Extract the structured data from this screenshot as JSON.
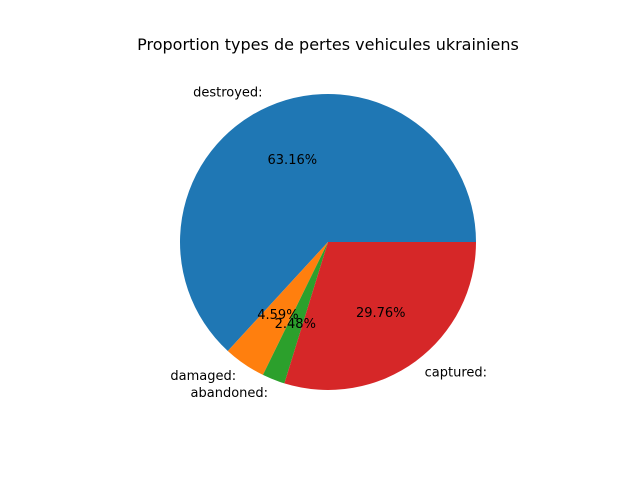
{
  "chart_data": {
    "type": "pie",
    "title": "Proportion types de pertes vehicules ukrainiens",
    "slices": [
      {
        "label": "destroyed:",
        "value": 63.16,
        "pct_label": "63.16%",
        "color": "#1f77b4"
      },
      {
        "label": "damaged:",
        "value": 4.59,
        "pct_label": "4.59%",
        "color": "#ff7f0e"
      },
      {
        "label": "abandoned:",
        "value": 2.48,
        "pct_label": "2.48%",
        "color": "#2ca02c"
      },
      {
        "label": "captured:",
        "value": 29.76,
        "pct_label": "29.76%",
        "color": "#d62728"
      }
    ],
    "start_angle_deg": 0,
    "direction": "counterclockwise",
    "legend": "none"
  }
}
